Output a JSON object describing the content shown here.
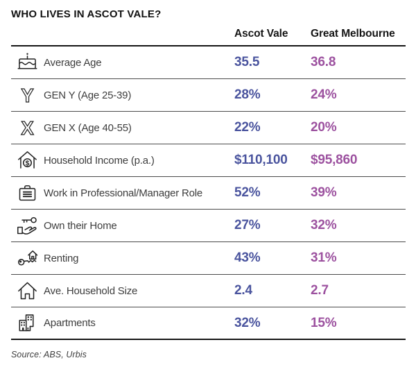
{
  "title": "WHO LIVES IN ASCOT VALE?",
  "columns": [
    "Ascot Vale",
    "Great Melbourne"
  ],
  "colors": {
    "ascot_vale": "#4a549e",
    "great_melbourne": "#9c519f"
  },
  "rows": [
    {
      "icon": "cake-icon",
      "label": "Average Age",
      "ascot_vale": "35.5",
      "great_melbourne": "36.8"
    },
    {
      "icon": "gen-y-icon",
      "label": "GEN Y (Age 25-39)",
      "ascot_vale": "28%",
      "great_melbourne": "24%"
    },
    {
      "icon": "gen-x-icon",
      "label": "GEN X (Age 40-55)",
      "ascot_vale": "22%",
      "great_melbourne": "20%"
    },
    {
      "icon": "house-dollar-icon",
      "label": "Household Income (p.a.)",
      "ascot_vale": "$110,100",
      "great_melbourne": "$95,860"
    },
    {
      "icon": "briefcase-icon",
      "label": "Work in Professional/Manager Role",
      "ascot_vale": "52%",
      "great_melbourne": "39%"
    },
    {
      "icon": "hand-key-icon",
      "label": "Own their Home",
      "ascot_vale": "27%",
      "great_melbourne": "32%"
    },
    {
      "icon": "key-house-icon",
      "label": "Renting",
      "ascot_vale": "43%",
      "great_melbourne": "31%"
    },
    {
      "icon": "house-icon",
      "label": "Ave. Household Size",
      "ascot_vale": "2.4",
      "great_melbourne": "2.7"
    },
    {
      "icon": "apartments-icon",
      "label": "Apartments",
      "ascot_vale": "32%",
      "great_melbourne": "15%"
    }
  ],
  "source": "Source: ABS, Urbis",
  "chart_data": {
    "type": "table",
    "title": "WHO LIVES IN ASCOT VALE?",
    "columns": [
      "Metric",
      "Ascot Vale",
      "Great Melbourne"
    ],
    "rows": [
      [
        "Average Age",
        35.5,
        36.8
      ],
      [
        "GEN Y (Age 25-39) %",
        28,
        24
      ],
      [
        "GEN X (Age 40-55) %",
        22,
        20
      ],
      [
        "Household Income (p.a.) $",
        110100,
        95860
      ],
      [
        "Work in Professional/Manager Role %",
        52,
        39
      ],
      [
        "Own their Home %",
        27,
        32
      ],
      [
        "Renting %",
        43,
        31
      ],
      [
        "Ave. Household Size",
        2.4,
        2.7
      ],
      [
        "Apartments %",
        32,
        15
      ]
    ],
    "source": "Source: ABS, Urbis",
    "layout": {
      "grid": false,
      "value_colors": {
        "Ascot Vale": "#4a549e",
        "Great Melbourne": "#9c519f"
      }
    }
  }
}
